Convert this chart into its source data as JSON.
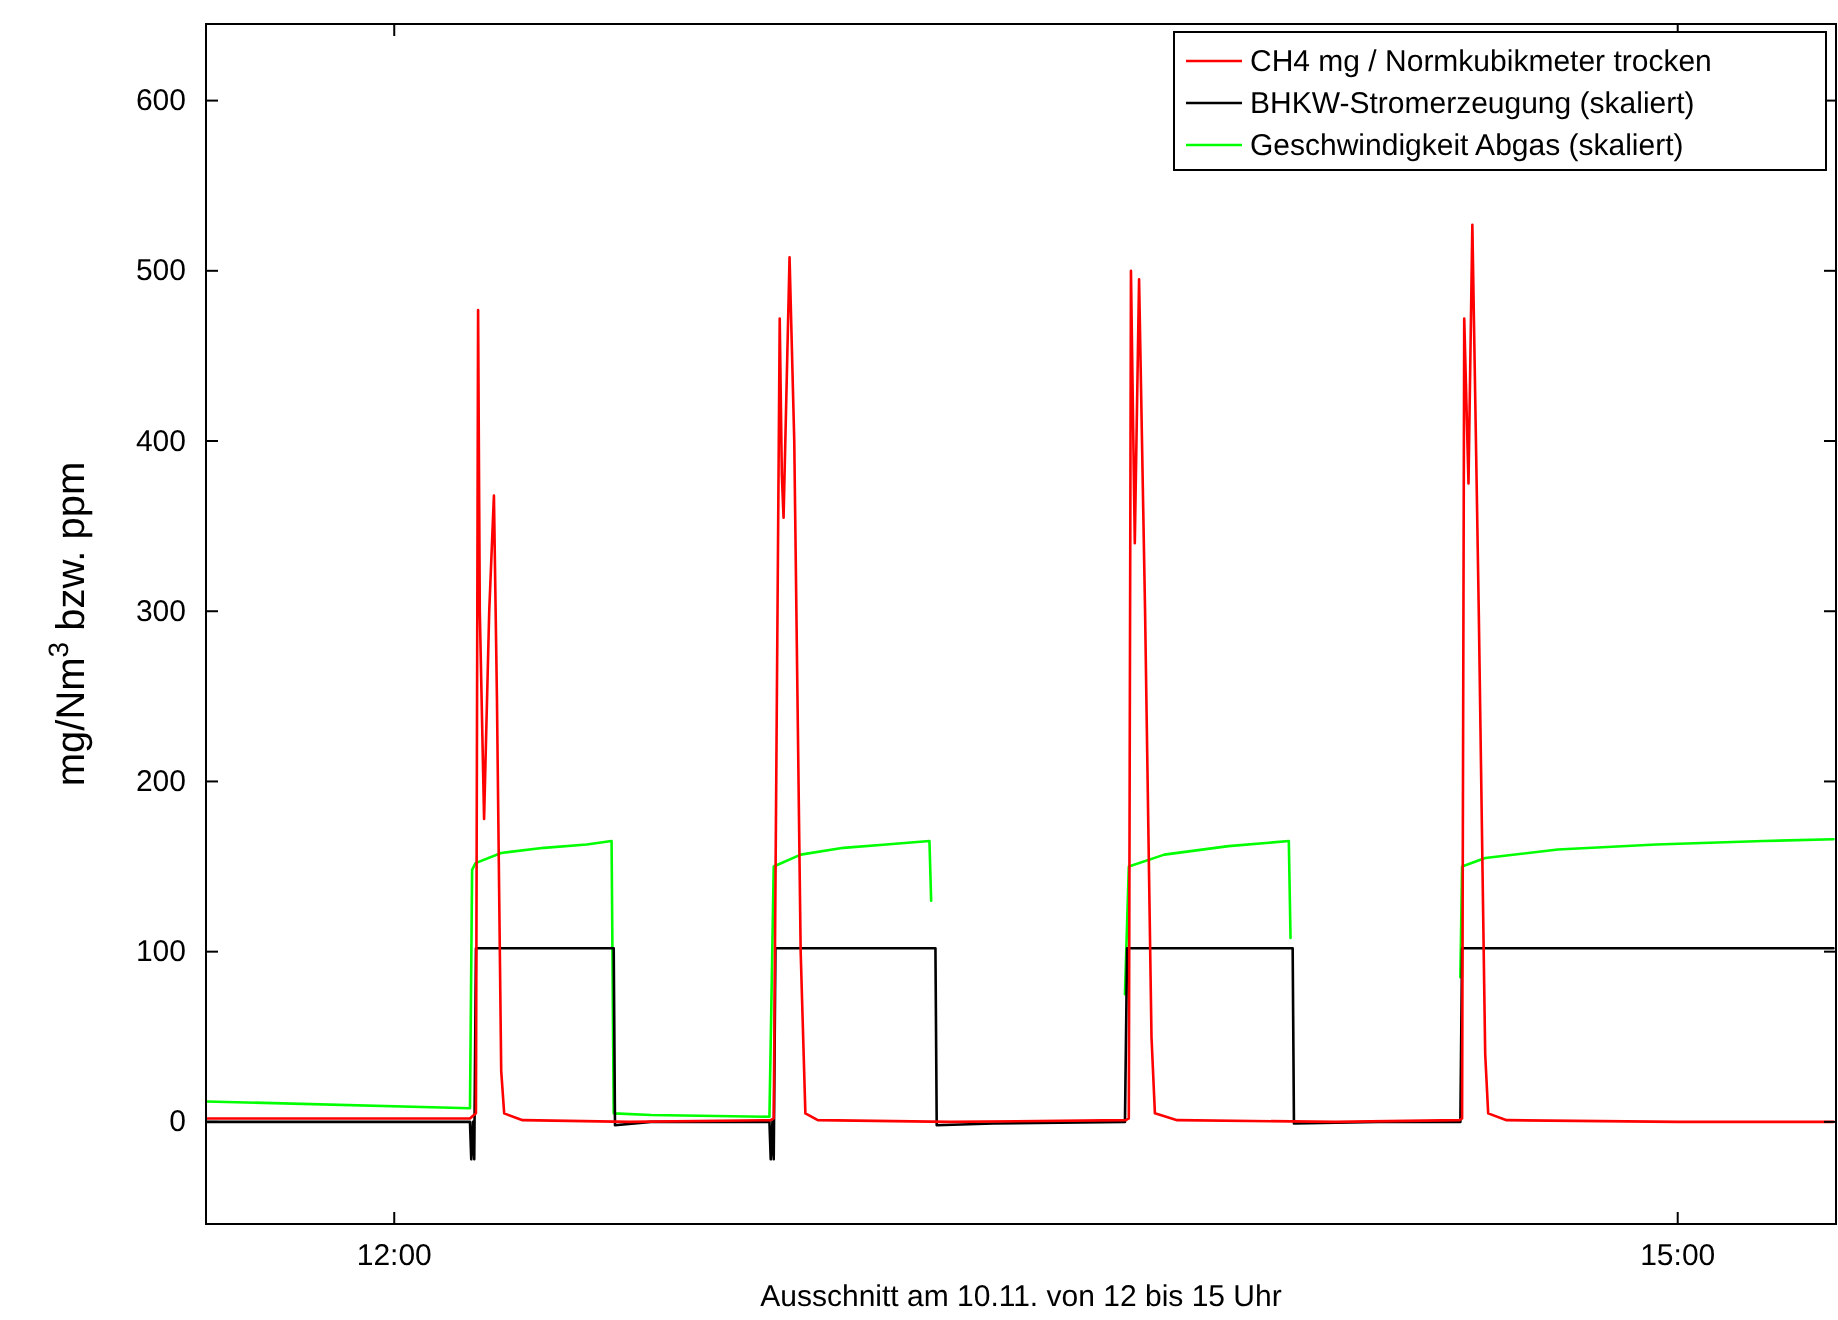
{
  "chart_data": {
    "type": "line",
    "xlabel": "Ausschnitt am 10.11. von 12 bis 15 Uhr",
    "ylabel": "mg/Nm$^{3}$ bzw. ppm",
    "xlim": [
      11.56,
      15.37
    ],
    "xticks": [
      {
        "value": 12,
        "label": "12:00"
      },
      {
        "value": 15,
        "label": "15:00"
      }
    ],
    "ylim": [
      -60,
      645
    ],
    "yticks": [
      0,
      100,
      200,
      300,
      400,
      500,
      600
    ],
    "grid": false,
    "legend": "top right",
    "line_style": "solid",
    "marker": "none",
    "series": [
      {
        "name": "CH4 mg / Normkubikmeter trocken",
        "color": "#ff0000",
        "x": [
          11.561,
          12.177,
          12.191,
          12.196,
          12.2,
          12.21,
          12.222,
          12.233,
          12.24,
          12.25,
          12.257,
          12.3,
          12.55,
          12.88,
          12.887,
          12.901,
          12.906,
          12.91,
          12.924,
          12.935,
          12.95,
          12.961,
          12.99,
          13.3,
          13.71,
          13.717,
          13.722,
          13.731,
          13.741,
          13.755,
          13.77,
          13.778,
          13.83,
          14.2,
          14.49,
          14.496,
          14.501,
          14.511,
          14.52,
          14.535,
          14.55,
          14.557,
          14.6,
          15,
          15.364
        ],
        "values": [
          2,
          2,
          5,
          477,
          300,
          178,
          300,
          368,
          250,
          30,
          5,
          1,
          0,
          1,
          2,
          472,
          380,
          355,
          508,
          400,
          100,
          5,
          1,
          0,
          1,
          2,
          500,
          340,
          495,
          300,
          50,
          5,
          1,
          0,
          1,
          2,
          472,
          375,
          527,
          300,
          40,
          5,
          1,
          0,
          0
        ]
      },
      {
        "name": "BHKW-Stromerzeugung (skaliert)",
        "color": "#000000",
        "x": [
          11.561,
          12.177,
          12.18,
          12.184,
          12.187,
          12.191,
          12.513,
          12.516,
          12.6,
          12.877,
          12.88,
          12.884,
          12.887,
          12.891,
          13.265,
          13.268,
          13.4,
          13.708,
          13.713,
          14.1,
          14.103,
          14.3,
          14.492,
          14.496,
          15.364
        ],
        "values": [
          0,
          0,
          -22,
          0,
          -22,
          102,
          102,
          -2,
          0,
          0,
          -22,
          0,
          -22,
          102,
          102,
          -2,
          -1,
          0,
          102,
          102,
          -1,
          0,
          0,
          102,
          102
        ]
      },
      {
        "name": "Geschwindigkeit Abgas (skaliert)",
        "color": "#00ff00",
        "x": [
          11.561,
          12.177,
          12.182,
          12.19,
          12.25,
          12.35,
          12.45,
          12.508,
          12.513,
          12.6,
          12.877,
          12.887,
          12.95,
          13.05,
          13.15,
          13.251,
          13.255,
          13.4,
          13.708,
          13.717,
          13.8,
          13.95,
          14.091,
          14.095,
          14.3,
          14.492,
          14.496,
          14.55,
          14.72,
          14.95,
          15.2,
          15.364
        ],
        "values": [
          12,
          8,
          148,
          152,
          158,
          161,
          163,
          165,
          5,
          4,
          3,
          150,
          157,
          161,
          163,
          165,
          130,
          null,
          75,
          150,
          157,
          162,
          165,
          108,
          null,
          85,
          150,
          155,
          160,
          163,
          165,
          166
        ]
      }
    ]
  }
}
